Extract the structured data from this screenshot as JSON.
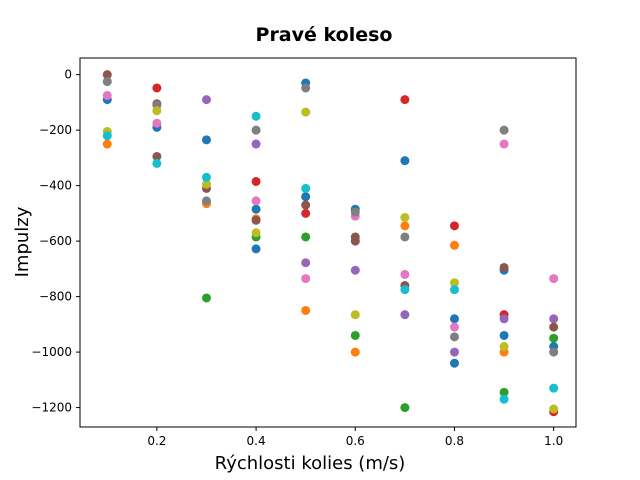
{
  "chart_data": {
    "type": "scatter",
    "title": "Pravé koleso",
    "xlabel": "Rýchlosti kolies (m/s)",
    "ylabel": "Impulzy",
    "xlim": [
      0.045,
      1.045
    ],
    "ylim": [
      -1270,
      60
    ],
    "xticks": [
      0.2,
      0.4,
      0.6,
      0.8,
      1.0
    ],
    "xtick_labels": [
      "0.2",
      "0.4",
      "0.6",
      "0.8",
      "1.0"
    ],
    "yticks": [
      0,
      -200,
      -400,
      -600,
      -800,
      -1000,
      -1200
    ],
    "ytick_labels": [
      "0",
      "−200",
      "−400",
      "−600",
      "−800",
      "−1000",
      "−1200"
    ],
    "grid": false,
    "legend": "none",
    "series": [
      {
        "color": "#1f77b4",
        "points": [
          [
            0.1,
            -90
          ],
          [
            0.2,
            -190
          ],
          [
            0.3,
            -235
          ],
          [
            0.4,
            -485
          ],
          [
            0.4,
            -628
          ],
          [
            0.5,
            -30
          ],
          [
            0.5,
            -440
          ],
          [
            0.6,
            -485
          ],
          [
            0.7,
            -310
          ],
          [
            0.8,
            -880
          ],
          [
            0.8,
            -1040
          ],
          [
            0.9,
            -705
          ],
          [
            0.9,
            -940
          ],
          [
            1.0,
            -980
          ]
        ]
      },
      {
        "color": "#ff7f0e",
        "points": [
          [
            0.1,
            -250
          ],
          [
            0.3,
            -465
          ],
          [
            0.4,
            -520
          ],
          [
            0.5,
            -850
          ],
          [
            0.6,
            -1000
          ],
          [
            0.7,
            -545
          ],
          [
            0.8,
            -615
          ],
          [
            0.9,
            -1000
          ]
        ]
      },
      {
        "color": "#2ca02c",
        "points": [
          [
            0.3,
            -805
          ],
          [
            0.4,
            -585
          ],
          [
            0.5,
            -585
          ],
          [
            0.6,
            -940
          ],
          [
            0.7,
            -1200
          ],
          [
            0.9,
            -1145
          ],
          [
            1.0,
            -950
          ]
        ]
      },
      {
        "color": "#d62728",
        "points": [
          [
            0.2,
            -48
          ],
          [
            0.4,
            -385
          ],
          [
            0.5,
            -500
          ],
          [
            0.7,
            -90
          ],
          [
            0.8,
            -545
          ],
          [
            0.9,
            -865
          ],
          [
            1.0,
            -1215
          ]
        ]
      },
      {
        "color": "#9467bd",
        "points": [
          [
            0.3,
            -90
          ],
          [
            0.4,
            -250
          ],
          [
            0.5,
            -678
          ],
          [
            0.6,
            -705
          ],
          [
            0.7,
            -865
          ],
          [
            0.8,
            -1000
          ],
          [
            0.9,
            -880
          ],
          [
            1.0,
            -880
          ]
        ]
      },
      {
        "color": "#8c564b",
        "points": [
          [
            0.1,
            0
          ],
          [
            0.2,
            -295
          ],
          [
            0.2,
            -105
          ],
          [
            0.3,
            -410
          ],
          [
            0.4,
            -525
          ],
          [
            0.5,
            -470
          ],
          [
            0.6,
            -585
          ],
          [
            0.6,
            -600
          ],
          [
            0.7,
            -760
          ],
          [
            0.9,
            -695
          ],
          [
            1.0,
            -910
          ]
        ]
      },
      {
        "color": "#e377c2",
        "points": [
          [
            0.1,
            -75
          ],
          [
            0.2,
            -175
          ],
          [
            0.4,
            -455
          ],
          [
            0.5,
            -735
          ],
          [
            0.6,
            -510
          ],
          [
            0.7,
            -720
          ],
          [
            0.8,
            -910
          ],
          [
            0.9,
            -250
          ],
          [
            1.0,
            -735
          ]
        ]
      },
      {
        "color": "#7f7f7f",
        "points": [
          [
            0.1,
            -25
          ],
          [
            0.2,
            -110
          ],
          [
            0.3,
            -455
          ],
          [
            0.4,
            -200
          ],
          [
            0.5,
            -48
          ],
          [
            0.6,
            -495
          ],
          [
            0.7,
            -585
          ],
          [
            0.8,
            -945
          ],
          [
            0.9,
            -200
          ],
          [
            1.0,
            -1000
          ]
        ]
      },
      {
        "color": "#bcbd22",
        "points": [
          [
            0.1,
            -205
          ],
          [
            0.2,
            -130
          ],
          [
            0.3,
            -395
          ],
          [
            0.4,
            -570
          ],
          [
            0.5,
            -135
          ],
          [
            0.6,
            -865
          ],
          [
            0.7,
            -515
          ],
          [
            0.8,
            -750
          ],
          [
            0.9,
            -980
          ],
          [
            1.0,
            -1205
          ]
        ]
      },
      {
        "color": "#17becf",
        "points": [
          [
            0.1,
            -220
          ],
          [
            0.2,
            -320
          ],
          [
            0.3,
            -370
          ],
          [
            0.4,
            -150
          ],
          [
            0.5,
            -410
          ],
          [
            0.7,
            -775
          ],
          [
            0.8,
            -775
          ],
          [
            0.9,
            -1170
          ],
          [
            1.0,
            -1130
          ]
        ]
      }
    ]
  }
}
